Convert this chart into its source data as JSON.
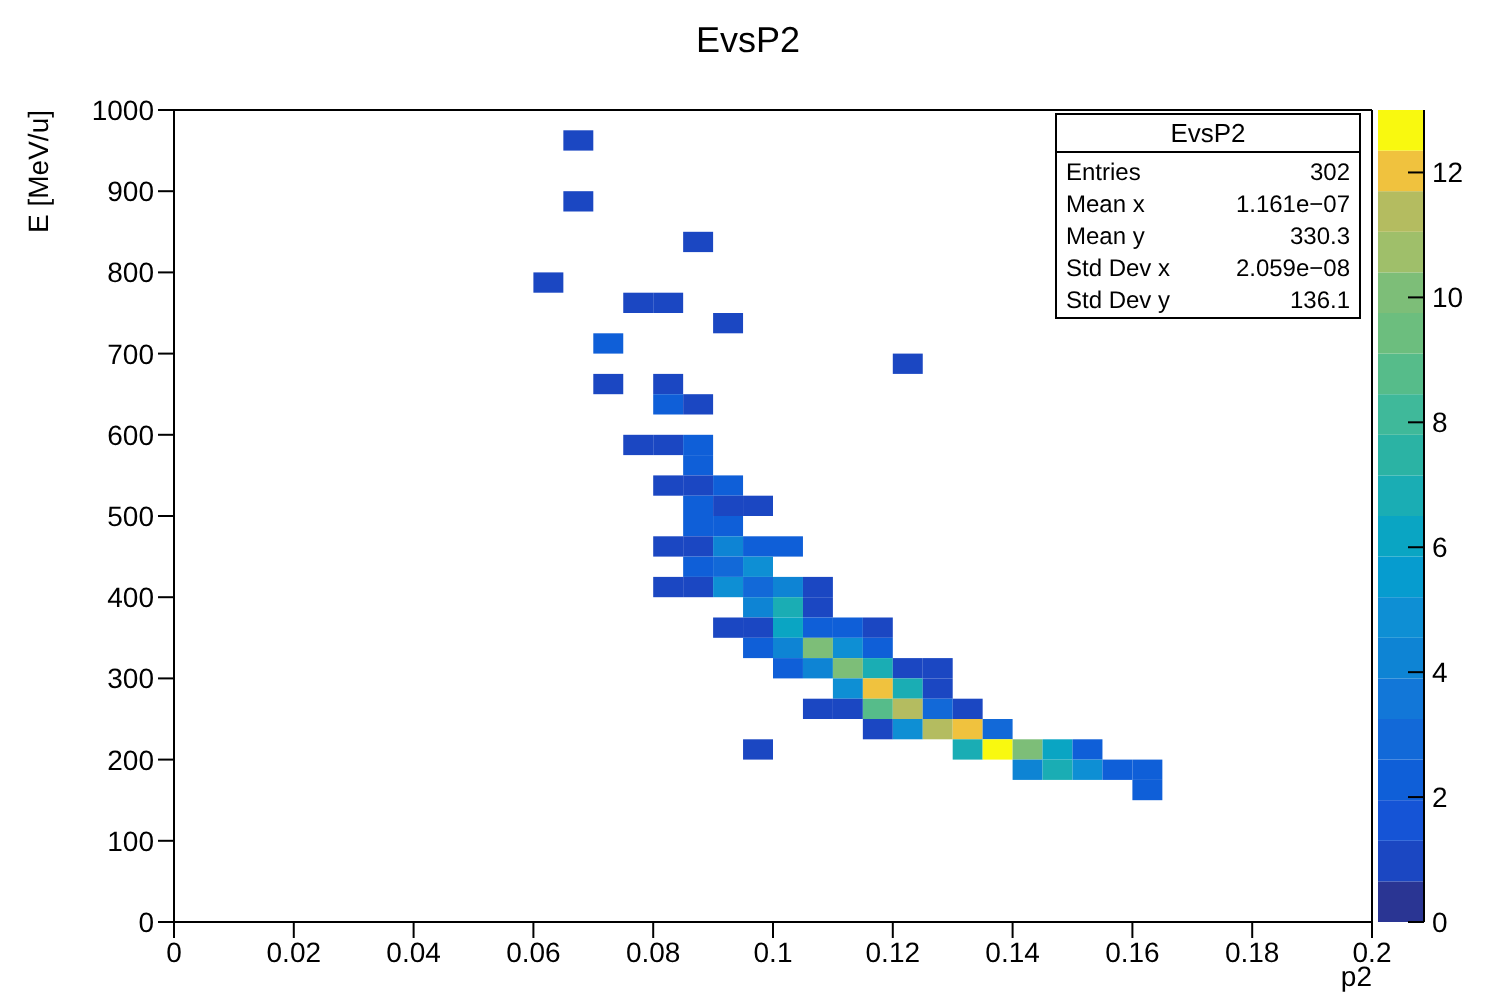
{
  "chart_data": {
    "type": "scatter",
    "title": "EvsP2",
    "xlabel": "p2",
    "ylabel": "E [MeV/u]",
    "annotations": [
      "EvsP2",
      "Entries",
      "302",
      "Mean x",
      "1.161e−07",
      "Mean y",
      "330.3",
      "Std Dev x",
      "2.059e−08",
      "Std Dev y",
      "136.1"
    ],
    "marker": "square",
    "xlim": [
      0,
      0.2
    ],
    "xticks": [
      0,
      0.02,
      0.04,
      0.06,
      0.08,
      0.1,
      0.12,
      0.14,
      0.16,
      0.18,
      0.2
    ],
    "ylim": [
      0,
      1000
    ],
    "yticks": [
      0,
      100,
      200,
      300,
      400,
      500,
      600,
      700,
      800,
      900,
      1000
    ],
    "clim": [
      0,
      13
    ],
    "cticks": [
      0,
      2,
      4,
      6,
      8,
      10,
      12
    ],
    "x": [
      0.0675,
      0.0675,
      0.0875,
      0.0625,
      0.0775,
      0.0825,
      0.0925,
      0.0725,
      0.1225,
      0.0725,
      0.0825,
      0.0825,
      0.0875,
      0.0775,
      0.0825,
      0.0875,
      0.0875,
      0.0825,
      0.0875,
      0.0925,
      0.0875,
      0.0925,
      0.0975,
      0.0875,
      0.0925,
      0.0825,
      0.0875,
      0.0925,
      0.0975,
      0.1025,
      0.0875,
      0.0925,
      0.0975,
      0.0825,
      0.0875,
      0.0925,
      0.0975,
      0.1025,
      0.1075,
      0.0975,
      0.1025,
      0.1075,
      0.0925,
      0.0975,
      0.1025,
      0.1075,
      0.1125,
      0.1175,
      0.0975,
      0.1025,
      0.1075,
      0.1125,
      0.1175,
      0.1025,
      0.1075,
      0.1125,
      0.1175,
      0.1225,
      0.1275,
      0.1125,
      0.1175,
      0.1225,
      0.1275,
      0.1075,
      0.1125,
      0.1175,
      0.1225,
      0.1275,
      0.1325,
      0.1175,
      0.1225,
      0.1275,
      0.1325,
      0.1375,
      0.0975,
      0.1325,
      0.1375,
      0.1425,
      0.1475,
      0.1525,
      0.1425,
      0.1475,
      0.1525,
      0.1575,
      0.1625,
      0.1625
    ],
    "values": [
      962.5,
      887.5,
      837.5,
      787.5,
      762.5,
      762.5,
      737.5,
      712.5,
      687.5,
      662.5,
      662.5,
      637.5,
      637.5,
      587.5,
      587.5,
      587.5,
      562.5,
      537.5,
      537.5,
      537.5,
      512.5,
      512.5,
      512.5,
      487.5,
      487.5,
      462.5,
      462.5,
      462.5,
      462.5,
      462.5,
      437.5,
      437.5,
      437.5,
      412.5,
      412.5,
      412.5,
      412.5,
      412.5,
      412.5,
      387.5,
      387.5,
      387.5,
      362.5,
      362.5,
      362.5,
      362.5,
      362.5,
      362.5,
      337.5,
      337.5,
      337.5,
      337.5,
      337.5,
      312.5,
      312.5,
      312.5,
      312.5,
      312.5,
      312.5,
      287.5,
      287.5,
      287.5,
      287.5,
      262.5,
      262.5,
      262.5,
      262.5,
      262.5,
      262.5,
      237.5,
      237.5,
      237.5,
      237.5,
      237.5,
      212.5,
      212.5,
      212.5,
      212.5,
      212.5,
      212.5,
      187.5,
      187.5,
      187.5,
      187.5,
      187.5,
      162.5
    ],
    "cvalues": [
      1,
      1,
      1,
      1,
      1,
      1,
      1,
      2,
      1,
      1,
      1,
      2,
      1,
      1,
      1,
      2,
      2,
      1,
      1,
      2,
      2,
      1,
      1,
      2,
      2,
      1,
      1,
      4,
      2,
      2,
      2,
      3,
      5,
      1,
      1,
      5,
      3,
      4,
      1,
      4,
      7,
      1,
      1,
      1,
      6,
      2,
      2,
      1,
      2,
      4,
      10,
      5,
      2,
      2,
      4,
      10,
      7,
      1,
      1,
      5,
      12,
      7,
      1,
      1,
      1,
      9,
      11.5,
      3,
      1,
      1,
      5,
      11.5,
      12,
      3,
      1,
      7,
      13,
      10,
      6,
      2,
      4,
      7,
      5,
      2,
      2,
      2
    ]
  }
}
